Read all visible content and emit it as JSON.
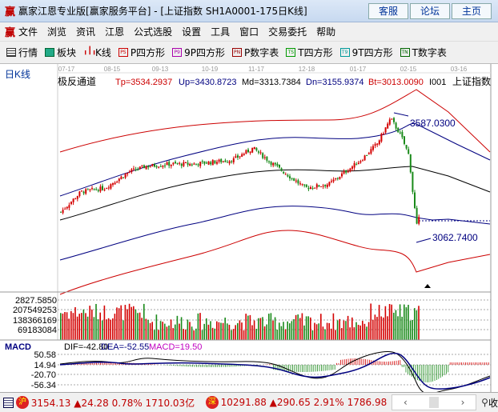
{
  "window": {
    "title": "赢家江恩专业版[赢家服务平台] - [上证指数  SH1A0001-175日K线]",
    "logo": "赢",
    "buttons": [
      "客服",
      "论坛",
      "主页"
    ]
  },
  "menu": [
    "文件",
    "浏览",
    "资讯",
    "江恩",
    "公式选股",
    "设置",
    "工具",
    "窗口",
    "交易委托",
    "帮助"
  ],
  "toolbar": [
    {
      "label": "行情",
      "icon": "table-icon"
    },
    {
      "label": "板块",
      "icon": "blocks-icon"
    },
    {
      "label": "K线",
      "icon": "candlestick-icon"
    },
    {
      "label": "P四方形",
      "icon": "PS"
    },
    {
      "label": "9P四方形",
      "icon": "P9"
    },
    {
      "label": "P数字表",
      "icon": "PN"
    },
    {
      "label": "T四方形",
      "icon": "TS"
    },
    {
      "label": "9T四方形",
      "icon": "T9"
    },
    {
      "label": "T数字表",
      "icon": "TN"
    }
  ],
  "chart": {
    "period_label": "日K线",
    "dates": [
      "07-17",
      "08-15",
      "09-13",
      "10-19",
      "11-17",
      "12-18",
      "01-17",
      "02-15",
      "03-16"
    ],
    "indicator": "极反通道",
    "params": {
      "tp": "Tp=3534.2937",
      "up": "Up=3430.8723",
      "md": "Md=3313.7384",
      "dn": "Dn=3155.9374",
      "bt": "Bt=3013.0090"
    },
    "code_fragment": "I001",
    "symbol_name": "上证指数",
    "high_label": "3587.0300",
    "low_label": "3062.7400",
    "price_path": [
      3179,
      3270,
      3288,
      3361,
      3386,
      3397,
      3397,
      3416,
      3470,
      3397,
      3343,
      3288,
      3306,
      3361,
      3416,
      3489,
      3605,
      3525,
      3434,
      3252,
      3106,
      3160
    ],
    "volume_axis": [
      "2827.5850",
      "207549253",
      "138366169",
      "69183084"
    ],
    "macd": {
      "label": "MACD",
      "dif": "DIF=-42.80",
      "dea": "DEA=-52.55",
      "macd": "MACD=19.50",
      "axis": [
        "50.58",
        "14.94",
        "-20.70",
        "-56.34"
      ]
    },
    "colors": {
      "up": "#d40000",
      "down": "#1a8a1a",
      "mid": "#000000",
      "band": "#000080",
      "outer": "#cc0000"
    }
  },
  "status": {
    "sh_badge": "沪",
    "sh": "3154.13 ▲24.28 0.78% 1710.03亿",
    "sz_badge": "深",
    "sz": "10291.88 ▲290.65 2.91% 1786.98",
    "tail": "收"
  }
}
